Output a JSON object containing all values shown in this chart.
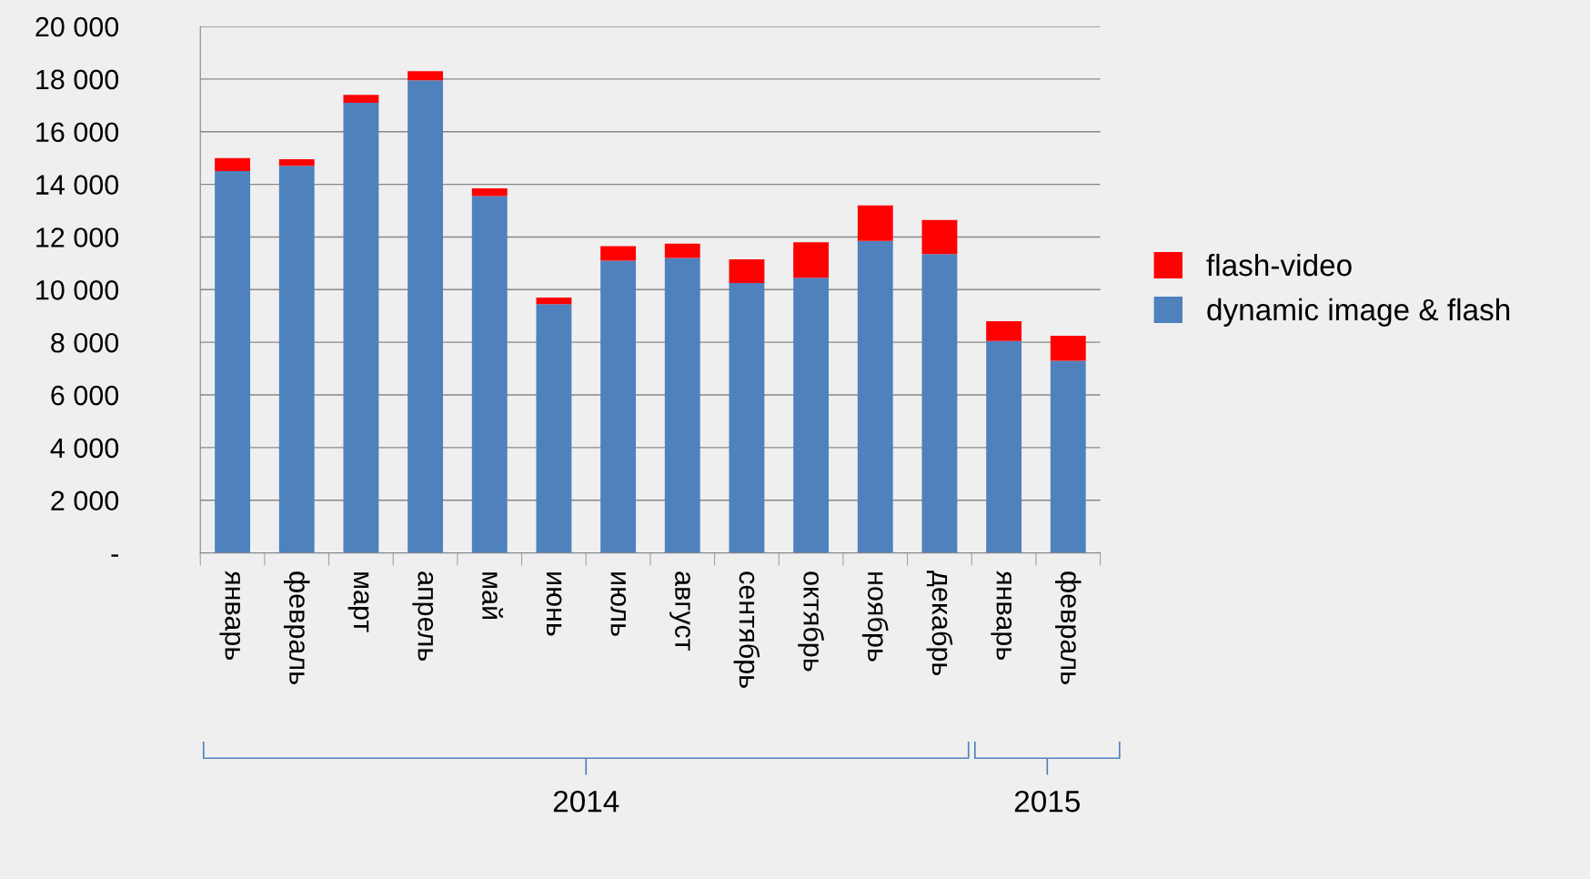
{
  "chart_data": {
    "type": "bar",
    "stacked": true,
    "categories": [
      "январь",
      "февраль",
      "март",
      "апрель",
      "май",
      "июнь",
      "июль",
      "август",
      "сентябрь",
      "октябрь",
      "ноябрь",
      "декабрь",
      "январь",
      "февраль"
    ],
    "series": [
      {
        "name": "dynamic image & flash",
        "color": "#4f81bd",
        "values": [
          14500,
          14700,
          17100,
          17950,
          13550,
          9450,
          11100,
          11200,
          10250,
          10450,
          11850,
          11350,
          8050,
          7300
        ]
      },
      {
        "name": "flash-video",
        "color": "#ff0000",
        "values": [
          500,
          250,
          300,
          350,
          300,
          250,
          550,
          550,
          900,
          1350,
          1350,
          1300,
          750,
          950
        ]
      }
    ],
    "ylim": [
      0,
      20000
    ],
    "yticks": [
      {
        "value": 0,
        "label": "-"
      },
      {
        "value": 2000,
        "label": "2 000"
      },
      {
        "value": 4000,
        "label": "4 000"
      },
      {
        "value": 6000,
        "label": "6 000"
      },
      {
        "value": 8000,
        "label": "8 000"
      },
      {
        "value": 10000,
        "label": "10 000"
      },
      {
        "value": 12000,
        "label": "12 000"
      },
      {
        "value": 14000,
        "label": "14 000"
      },
      {
        "value": 16000,
        "label": "16 000"
      },
      {
        "value": 18000,
        "label": "18 000"
      },
      {
        "value": 20000,
        "label": "20 000"
      }
    ],
    "grid": "y",
    "legend": "right",
    "annotations": [
      "2014",
      "2015"
    ]
  }
}
